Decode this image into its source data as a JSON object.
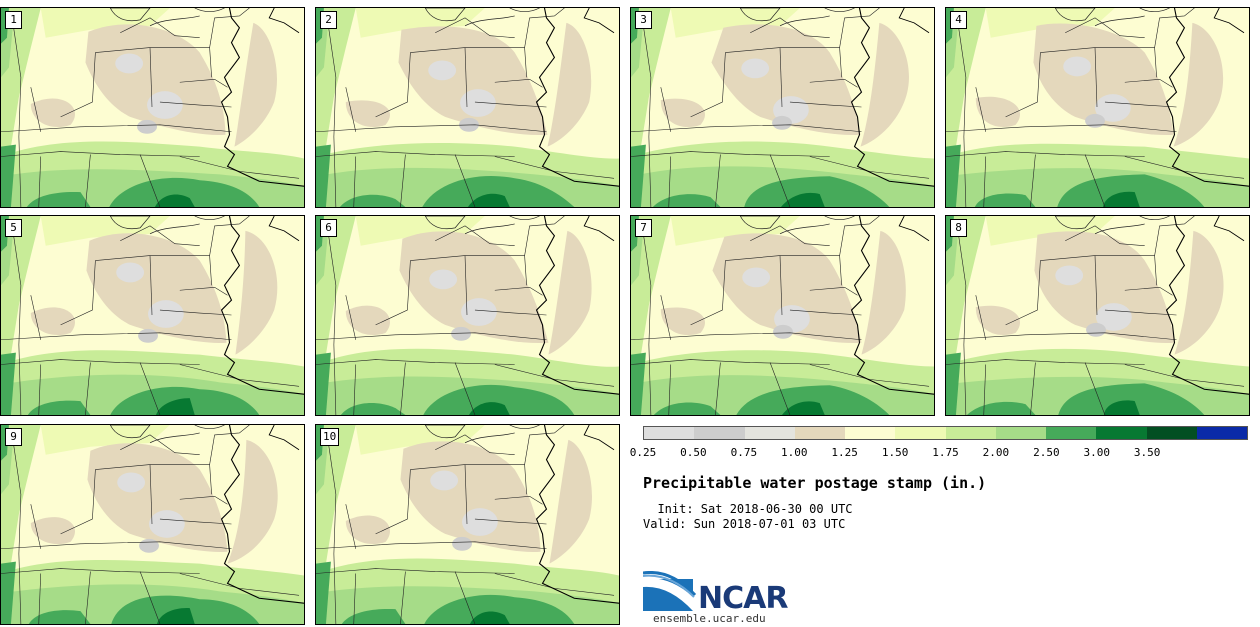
{
  "stamps": [
    {
      "label": "1"
    },
    {
      "label": "2"
    },
    {
      "label": "3"
    },
    {
      "label": "4"
    },
    {
      "label": "5"
    },
    {
      "label": "6"
    },
    {
      "label": "7"
    },
    {
      "label": "8"
    },
    {
      "label": "9"
    },
    {
      "label": "10"
    }
  ],
  "colorbar": {
    "ticks": [
      "0.25",
      "0.50",
      "0.75",
      "1.00",
      "1.25",
      "1.50",
      "1.75",
      "2.00",
      "2.50",
      "3.00",
      "3.50"
    ],
    "colors": [
      "#dedede",
      "#cdcdcd",
      "#e4e4de",
      "#e4d8bc",
      "#fdfdd2",
      "#eefab4",
      "#c8ec98",
      "#a6dc88",
      "#46aa5a",
      "#077932",
      "#034f22"
    ]
  },
  "legend": {
    "title": "Precipitable water postage stamp (in.)",
    "init": "  Init: Sat 2018-06-30 00 UTC",
    "valid": "Valid: Sun 2018-07-01 03 UTC"
  },
  "logo": {
    "name": "NCAR",
    "url": "ensemble.ucar.edu"
  }
}
